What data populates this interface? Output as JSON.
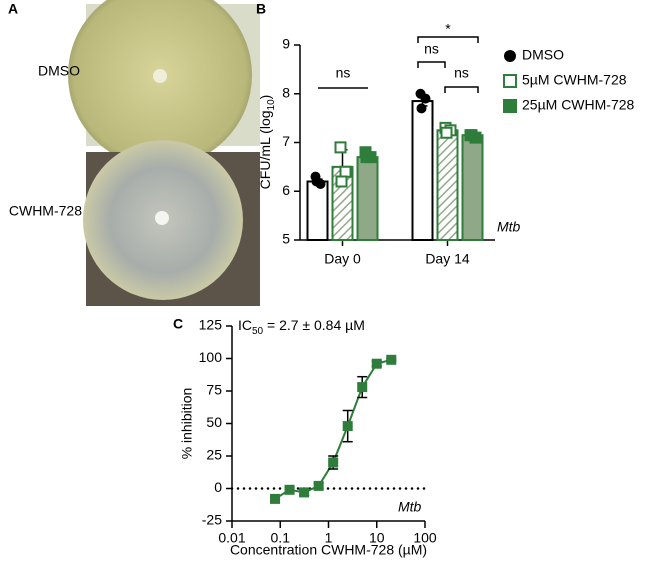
{
  "panel_a": {
    "label": "A",
    "plate_labels": [
      "DMSO",
      "CWHM-728"
    ]
  },
  "chart_data": [
    {
      "type": "bar",
      "panel_label": "B",
      "y_label": [
        "CFU/mL (log",
        "10",
        ")"
      ],
      "annotation": "Mtb",
      "categories": [
        "Day 0",
        "Day 14"
      ],
      "ylim": [
        5,
        9
      ],
      "yticks": [
        5,
        6,
        7,
        8,
        9
      ],
      "significance": [
        "ns",
        "ns",
        "ns",
        "*"
      ],
      "series": [
        {
          "name": "DMSO",
          "color": "#000000",
          "fill": "#ffffff",
          "marker": "circle",
          "values": [
            6.2,
            7.85
          ],
          "errors": [
            0.05,
            0.1
          ],
          "points": [
            [
              6.3,
              6.15,
              6.2
            ],
            [
              8.0,
              7.9,
              7.7
            ]
          ]
        },
        {
          "name": "5µM CWHM-728",
          "color": "#2e7d3a",
          "fill": "hatch",
          "marker": "open-square",
          "values": [
            6.5,
            7.25
          ],
          "errors": [
            0.35,
            0.05
          ],
          "points": [
            [
              6.9,
              6.4,
              6.2
            ],
            [
              7.3,
              7.25,
              7.2
            ]
          ]
        },
        {
          "name": "25µM CWHM-728",
          "color": "#2e7d3a",
          "fill": "#8fa888",
          "marker": "square",
          "values": [
            6.7,
            7.15
          ],
          "errors": [
            0.1,
            0.03
          ],
          "points": [
            [
              6.8,
              6.7,
              6.7
            ],
            [
              7.15,
              7.1,
              7.15
            ]
          ]
        }
      ]
    },
    {
      "type": "line",
      "panel_label": "C",
      "title": [
        "IC",
        "50",
        " = 2.7 ± 0.84 µM"
      ],
      "x_label": "Concentration CWHM-728 (µM)",
      "y_label": "% inhibition",
      "annotation": "Mtb",
      "log_x": true,
      "xlim": [
        0.01,
        100
      ],
      "xticks": [
        0.01,
        0.1,
        1,
        10,
        100
      ],
      "ylim": [
        -25,
        125
      ],
      "yticks": [
        -25,
        0,
        25,
        50,
        75,
        100,
        125
      ],
      "x": [
        0.078,
        0.156,
        0.3125,
        0.625,
        1.25,
        2.5,
        5,
        10,
        20
      ],
      "series": [
        {
          "color": "#2e7d3a",
          "values": [
            -8,
            -1,
            -3,
            2,
            20,
            48,
            78,
            96,
            99
          ],
          "errors": [
            2,
            2,
            2,
            2,
            5,
            12,
            8,
            2,
            1
          ]
        }
      ]
    }
  ]
}
